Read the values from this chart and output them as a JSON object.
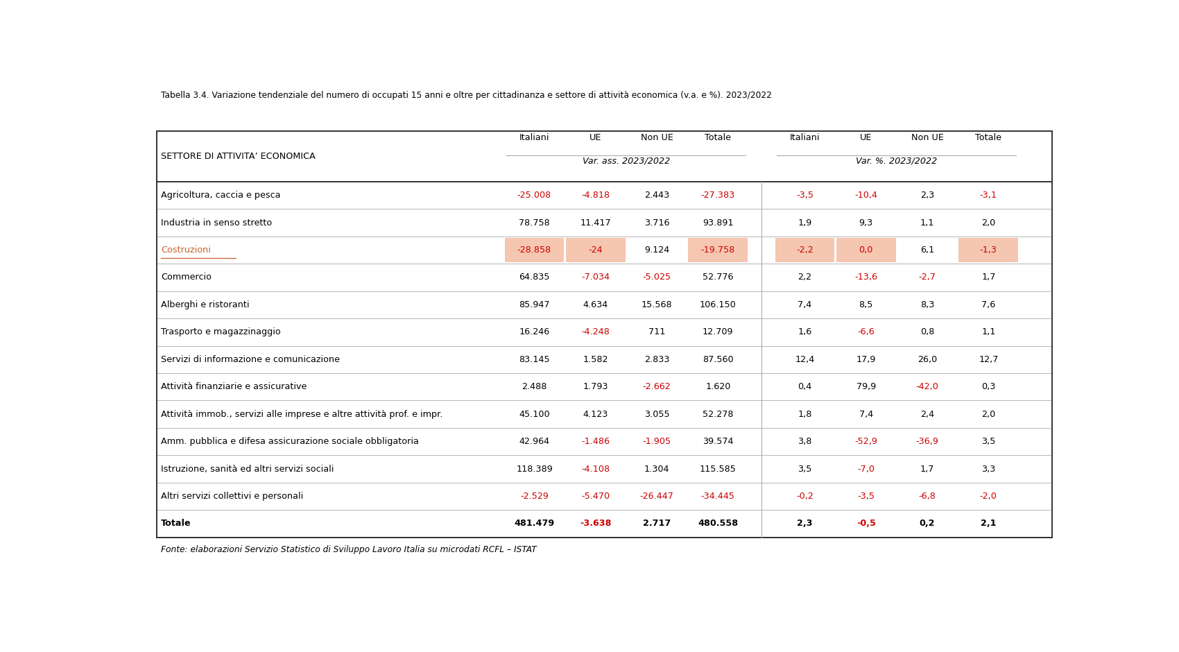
{
  "title": "Tabella 3.4. Variazione tendenziale del numero di occupati 15 anni e oltre per cittadinanza e settore di attività economica (v.a. e %). 2023/2022",
  "footer": "Fonte: elaborazioni Servizio Statistico di Sviluppo Lavoro Italia su microdati RCFL – ISTAT",
  "col_headers_top": [
    "Italiani",
    "UE",
    "Non UE",
    "Totale",
    "Italiani",
    "UE",
    "Non UE",
    "Totale"
  ],
  "col_subheaders": [
    "Var. ass. 2023/2022",
    "Var. %. 2023/2022"
  ],
  "sector_header": "SETTORE DI ATTIVITA’ ECONOMICA",
  "rows": [
    {
      "label": "Agricoltura, caccia e pesca",
      "values": [
        "-25.008",
        "-4.818",
        "2.443",
        "-27.383",
        "-3,5",
        "-10,4",
        "2,3",
        "-3,1"
      ],
      "label_color": "black",
      "value_colors": [
        "red",
        "red",
        "black",
        "red",
        "red",
        "red",
        "black",
        "red"
      ],
      "highlight": false
    },
    {
      "label": "Industria in senso stretto",
      "values": [
        "78.758",
        "11.417",
        "3.716",
        "93.891",
        "1,9",
        "9,3",
        "1,1",
        "2,0"
      ],
      "label_color": "black",
      "value_colors": [
        "black",
        "black",
        "black",
        "black",
        "black",
        "black",
        "black",
        "black"
      ],
      "highlight": false
    },
    {
      "label": "Costruzioni",
      "values": [
        "-28.858",
        "-24",
        "9.124",
        "-19.758",
        "-2,2",
        "0,0",
        "6,1",
        "-1,3"
      ],
      "label_color": "#c8602a",
      "label_underline": true,
      "value_colors": [
        "red",
        "red",
        "black",
        "red",
        "red",
        "red",
        "black",
        "red"
      ],
      "highlight_cells": [
        0,
        1,
        3,
        4,
        5,
        7
      ],
      "highlight": true
    },
    {
      "label": "Commercio",
      "values": [
        "64.835",
        "-7.034",
        "-5.025",
        "52.776",
        "2,2",
        "-13,6",
        "-2,7",
        "1,7"
      ],
      "label_color": "black",
      "value_colors": [
        "black",
        "red",
        "red",
        "black",
        "black",
        "red",
        "red",
        "black"
      ],
      "highlight": false
    },
    {
      "label": "Alberghi e ristoranti",
      "values": [
        "85.947",
        "4.634",
        "15.568",
        "106.150",
        "7,4",
        "8,5",
        "8,3",
        "7,6"
      ],
      "label_color": "black",
      "value_colors": [
        "black",
        "black",
        "black",
        "black",
        "black",
        "black",
        "black",
        "black"
      ],
      "highlight": false
    },
    {
      "label": "Trasporto e magazzinaggio",
      "values": [
        "16.246",
        "-4.248",
        "711",
        "12.709",
        "1,6",
        "-6,6",
        "0,8",
        "1,1"
      ],
      "label_color": "black",
      "value_colors": [
        "black",
        "red",
        "black",
        "black",
        "black",
        "red",
        "black",
        "black"
      ],
      "highlight": false
    },
    {
      "label": "Servizi di informazione e comunicazione",
      "values": [
        "83.145",
        "1.582",
        "2.833",
        "87.560",
        "12,4",
        "17,9",
        "26,0",
        "12,7"
      ],
      "label_color": "black",
      "value_colors": [
        "black",
        "black",
        "black",
        "black",
        "black",
        "black",
        "black",
        "black"
      ],
      "highlight": false
    },
    {
      "label": "Attività finanziarie e assicurative",
      "values": [
        "2.488",
        "1.793",
        "-2.662",
        "1.620",
        "0,4",
        "79,9",
        "-42,0",
        "0,3"
      ],
      "label_color": "black",
      "value_colors": [
        "black",
        "black",
        "red",
        "black",
        "black",
        "black",
        "red",
        "black"
      ],
      "highlight": false
    },
    {
      "label": "Attività immob., servizi alle imprese e altre attività prof. e impr.",
      "values": [
        "45.100",
        "4.123",
        "3.055",
        "52.278",
        "1,8",
        "7,4",
        "2,4",
        "2,0"
      ],
      "label_color": "black",
      "value_colors": [
        "black",
        "black",
        "black",
        "black",
        "black",
        "black",
        "black",
        "black"
      ],
      "highlight": false
    },
    {
      "label": "Amm. pubblica e difesa assicurazione sociale obbligatoria",
      "values": [
        "42.964",
        "-1.486",
        "-1.905",
        "39.574",
        "3,8",
        "-52,9",
        "-36,9",
        "3,5"
      ],
      "label_color": "black",
      "value_colors": [
        "black",
        "red",
        "red",
        "black",
        "black",
        "red",
        "red",
        "black"
      ],
      "highlight": false
    },
    {
      "label": "Istruzione, sanità ed altri servizi sociali",
      "values": [
        "118.389",
        "-4.108",
        "1.304",
        "115.585",
        "3,5",
        "-7,0",
        "1,7",
        "3,3"
      ],
      "label_color": "black",
      "value_colors": [
        "black",
        "red",
        "black",
        "black",
        "black",
        "red",
        "black",
        "black"
      ],
      "highlight": false
    },
    {
      "label": "Altri servizi collettivi e personali",
      "values": [
        "-2.529",
        "-5.470",
        "-26.447",
        "-34.445",
        "-0,2",
        "-3,5",
        "-6,8",
        "-2,0"
      ],
      "label_color": "black",
      "value_colors": [
        "red",
        "red",
        "red",
        "red",
        "red",
        "red",
        "red",
        "red"
      ],
      "highlight": false
    },
    {
      "label": "Totale",
      "values": [
        "481.479",
        "-3.638",
        "2.717",
        "480.558",
        "2,3",
        "-0,5",
        "0,2",
        "2,1"
      ],
      "label_color": "black",
      "value_colors": [
        "black",
        "red",
        "black",
        "black",
        "black",
        "red",
        "black",
        "black"
      ],
      "highlight": false,
      "is_total": true
    }
  ],
  "highlight_bg_color": "#f5c6b0",
  "red_color": "#cc0000",
  "orange_label_color": "#c8602a",
  "bg_color": "white",
  "outer_border_color": "#333333",
  "separator_color": "#aaaaaa"
}
